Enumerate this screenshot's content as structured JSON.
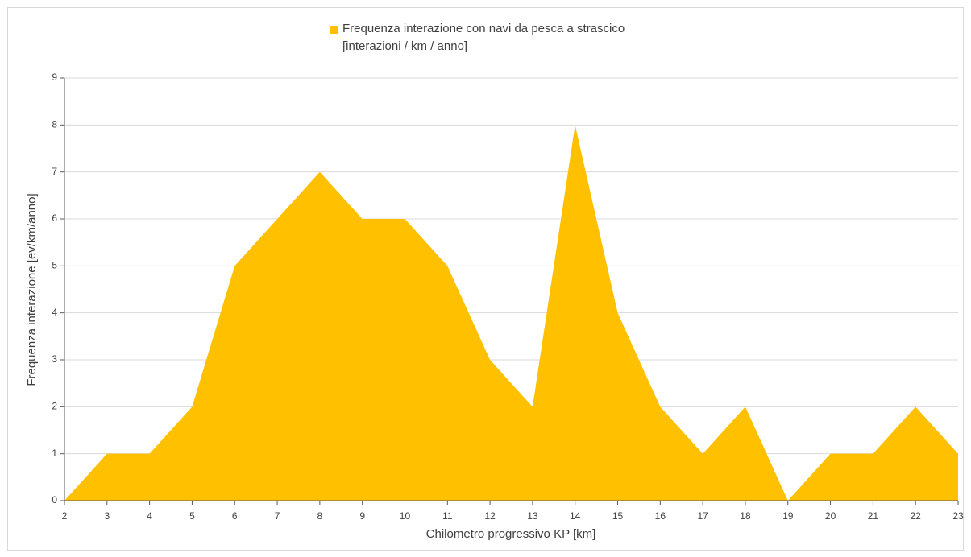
{
  "chart_data": {
    "type": "area",
    "x": [
      2,
      3,
      4,
      5,
      6,
      7,
      8,
      9,
      10,
      11,
      12,
      13,
      14,
      15,
      16,
      17,
      18,
      19,
      20,
      21,
      22,
      23
    ],
    "series": [
      {
        "name": "Frequenza interazione con navi da pesca a strascico [interazioni / km / anno]",
        "color": "#ffc000",
        "values": [
          0,
          1,
          1,
          2,
          5,
          6,
          7,
          6,
          6,
          5,
          3,
          2,
          8,
          4,
          2,
          1,
          2,
          0,
          1,
          1,
          2,
          1
        ]
      }
    ],
    "xlabel": "Chilometro progressivo KP [km]",
    "ylabel": "Frequenza interazione [ev/km/anno]",
    "xlim": [
      2,
      23
    ],
    "xticks": [
      2,
      3,
      4,
      5,
      6,
      7,
      8,
      9,
      10,
      11,
      12,
      13,
      14,
      15,
      16,
      17,
      18,
      19,
      20,
      21,
      22,
      23
    ],
    "ylim": [
      0,
      9
    ],
    "yticks": [
      0,
      1,
      2,
      3,
      4,
      5,
      6,
      7,
      8,
      9
    ],
    "grid": true
  }
}
